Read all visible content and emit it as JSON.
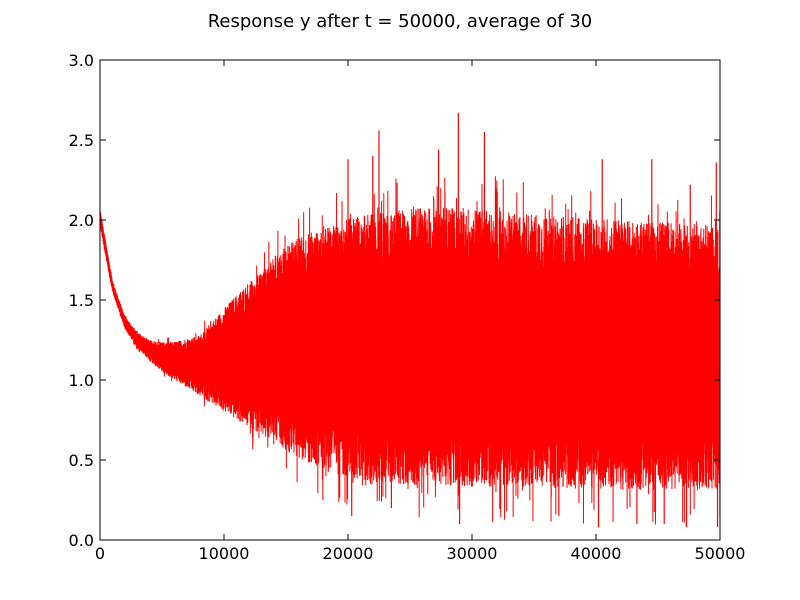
{
  "chart_data": {
    "type": "line",
    "title": "Response y after t = 50000, average of 30",
    "xlabel": "",
    "ylabel": "",
    "xlim": [
      0,
      50000
    ],
    "ylim": [
      0.0,
      3.0
    ],
    "xticks": [
      "0",
      "10000",
      "20000",
      "30000",
      "40000",
      "50000"
    ],
    "yticks": [
      "0.0",
      "0.5",
      "1.0",
      "1.5",
      "2.0",
      "2.5",
      "3.0"
    ],
    "grid": false,
    "series": [
      {
        "color": "#ff0000",
        "envelope": {
          "t": [
            0,
            500,
            1000,
            2000,
            3000,
            4000,
            5000,
            6000,
            8000,
            10000,
            12000,
            14000,
            16000,
            18000,
            20000,
            22000,
            25000,
            28000,
            30000,
            35000,
            40000,
            45000,
            50000
          ],
          "upper": [
            2.07,
            1.85,
            1.62,
            1.4,
            1.3,
            1.25,
            1.24,
            1.24,
            1.28,
            1.45,
            1.62,
            1.78,
            1.9,
            1.98,
            2.02,
            2.05,
            2.08,
            2.1,
            2.08,
            2.05,
            2.02,
            2.0,
            1.98
          ],
          "lower": [
            1.97,
            1.75,
            1.55,
            1.32,
            1.2,
            1.12,
            1.05,
            1.0,
            0.9,
            0.8,
            0.7,
            0.6,
            0.5,
            0.42,
            0.38,
            0.35,
            0.33,
            0.32,
            0.32,
            0.32,
            0.3,
            0.3,
            0.3
          ]
        },
        "peaks": [
          {
            "t": 22500,
            "y": 2.56
          },
          {
            "t": 27300,
            "y": 2.44
          },
          {
            "t": 28900,
            "y": 2.67
          },
          {
            "t": 31000,
            "y": 2.55
          },
          {
            "t": 22000,
            "y": 2.4
          },
          {
            "t": 20000,
            "y": 2.38
          },
          {
            "t": 40500,
            "y": 2.38
          },
          {
            "t": 44500,
            "y": 2.38
          },
          {
            "t": 49700,
            "y": 2.36
          },
          {
            "t": 47600,
            "y": 2.22
          }
        ],
        "troughs": [
          {
            "t": 20300,
            "y": 0.15
          },
          {
            "t": 29000,
            "y": 0.1
          },
          {
            "t": 40200,
            "y": 0.08
          },
          {
            "t": 43300,
            "y": 0.1
          },
          {
            "t": 45500,
            "y": 0.1
          },
          {
            "t": 47300,
            "y": 0.08
          },
          {
            "t": 49800,
            "y": 0.08
          },
          {
            "t": 23500,
            "y": 0.2
          },
          {
            "t": 37000,
            "y": 0.15
          }
        ]
      }
    ]
  }
}
